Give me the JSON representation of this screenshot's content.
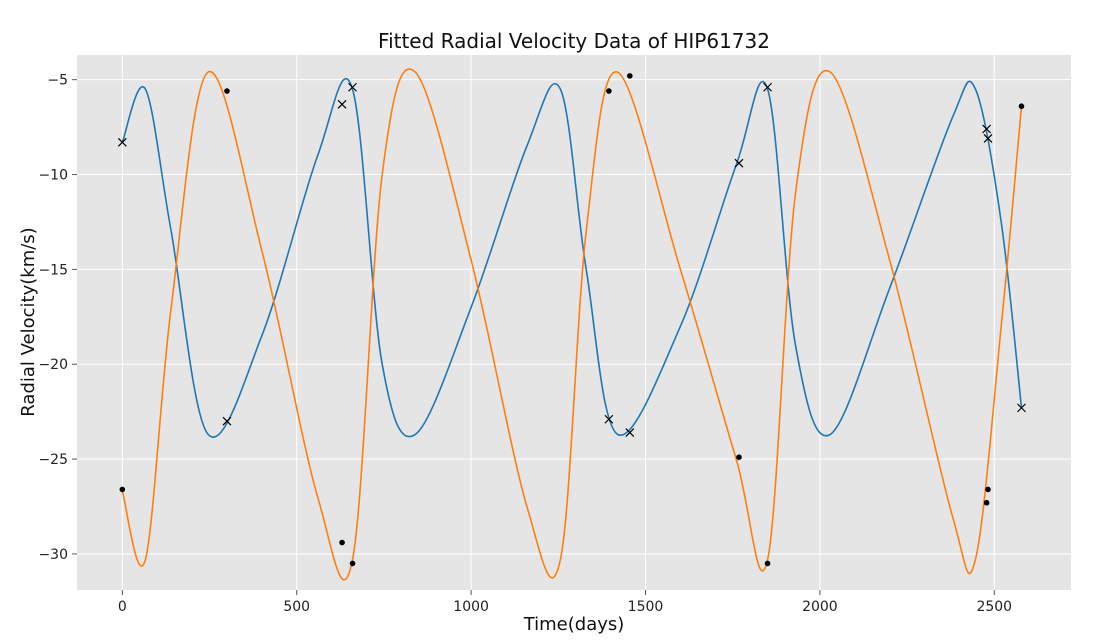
{
  "chart_data": {
    "type": "line",
    "title": "Fitted Radial Velocity Data of HIP61732",
    "xlabel": "Time(days)",
    "ylabel": "Radial Velocity(km/s)",
    "xlim": [
      -130,
      2720
    ],
    "ylim": [
      -31.9,
      -3.7
    ],
    "xticks": [
      0,
      500,
      1000,
      1500,
      2000,
      2500
    ],
    "yticks": [
      -30,
      -25,
      -20,
      -15,
      -10,
      -5
    ],
    "grid": true,
    "background": "#e5e5e5",
    "series": [
      {
        "color": "#1f77b4",
        "style": "line",
        "x": [
          0,
          66,
          140,
          246,
          400,
          560,
          660,
          745,
          840,
          1000,
          1160,
          1256,
          1330,
          1420,
          1600,
          1760,
          1850,
          1930,
          2030,
          2200,
          2380,
          2446,
          2520,
          2578
        ],
        "y": [
          -8.3,
          -5.5,
          -13.0,
          -23.7,
          -18.5,
          -9.0,
          -5.5,
          -20.0,
          -23.7,
          -17.0,
          -8.5,
          -5.5,
          -15.0,
          -23.7,
          -18.0,
          -9.5,
          -5.5,
          -19.0,
          -23.7,
          -16.0,
          -7.0,
          -5.5,
          -12.5,
          -22.3
        ]
      },
      {
        "color": "#ff7f0e",
        "style": "line",
        "x": [
          0,
          66,
          140,
          246,
          400,
          560,
          660,
          745,
          840,
          1000,
          1160,
          1256,
          1330,
          1420,
          1600,
          1760,
          1850,
          1930,
          2030,
          2200,
          2380,
          2446,
          2520,
          2578
        ],
        "y": [
          -26.7,
          -30.3,
          -17.0,
          -4.6,
          -14.0,
          -27.0,
          -30.3,
          -10.0,
          -4.6,
          -14.5,
          -27.5,
          -30.3,
          -13.0,
          -4.6,
          -15.0,
          -25.0,
          -30.3,
          -11.0,
          -4.6,
          -14.5,
          -28.0,
          -30.3,
          -18.0,
          -6.4
        ]
      },
      {
        "color": "#000000",
        "style": "x",
        "x": [
          0,
          300,
          630,
          660,
          1395,
          1455,
          1768,
          1850,
          2478,
          2482,
          2578
        ],
        "y": [
          -8.3,
          -23.0,
          -6.3,
          -5.4,
          -22.9,
          -23.6,
          -9.4,
          -5.4,
          -7.6,
          -8.1,
          -22.3
        ]
      },
      {
        "color": "#000000",
        "style": "dot",
        "x": [
          0,
          300,
          630,
          660,
          1395,
          1455,
          1768,
          1850,
          2478,
          2482,
          2578
        ],
        "y": [
          -26.6,
          -5.6,
          -29.4,
          -30.5,
          -5.6,
          -4.8,
          -24.9,
          -30.5,
          -27.3,
          -26.6,
          -6.4
        ]
      }
    ]
  }
}
